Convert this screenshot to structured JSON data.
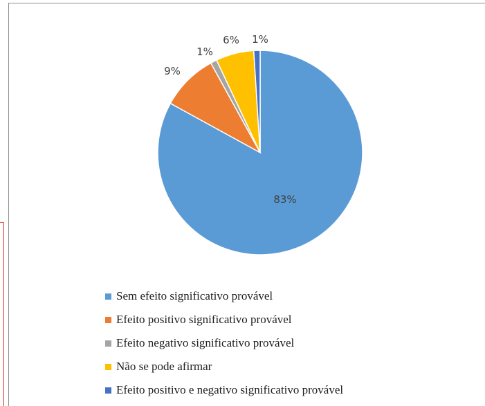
{
  "chart_data": {
    "type": "pie",
    "title": "",
    "series": [
      {
        "name": "Sem efeito significativo provável",
        "value": 83,
        "label": "83%",
        "color": "#5b9bd5"
      },
      {
        "name": "Efeito positivo significativo provável",
        "value": 9,
        "label": "9%",
        "color": "#ed7d31"
      },
      {
        "name": "Efeito negativo significativo provável",
        "value": 1,
        "label": "1%",
        "color": "#a5a5a5"
      },
      {
        "name": "Não se pode afirmar",
        "value": 6,
        "label": "6%",
        "color": "#ffc000"
      },
      {
        "name": "Efeito positivo e negativo significativo provável",
        "value": 1,
        "label": "1%",
        "color": "#4472c4"
      }
    ],
    "legend_position": "bottom",
    "direction": "clockwise",
    "start": "top"
  }
}
